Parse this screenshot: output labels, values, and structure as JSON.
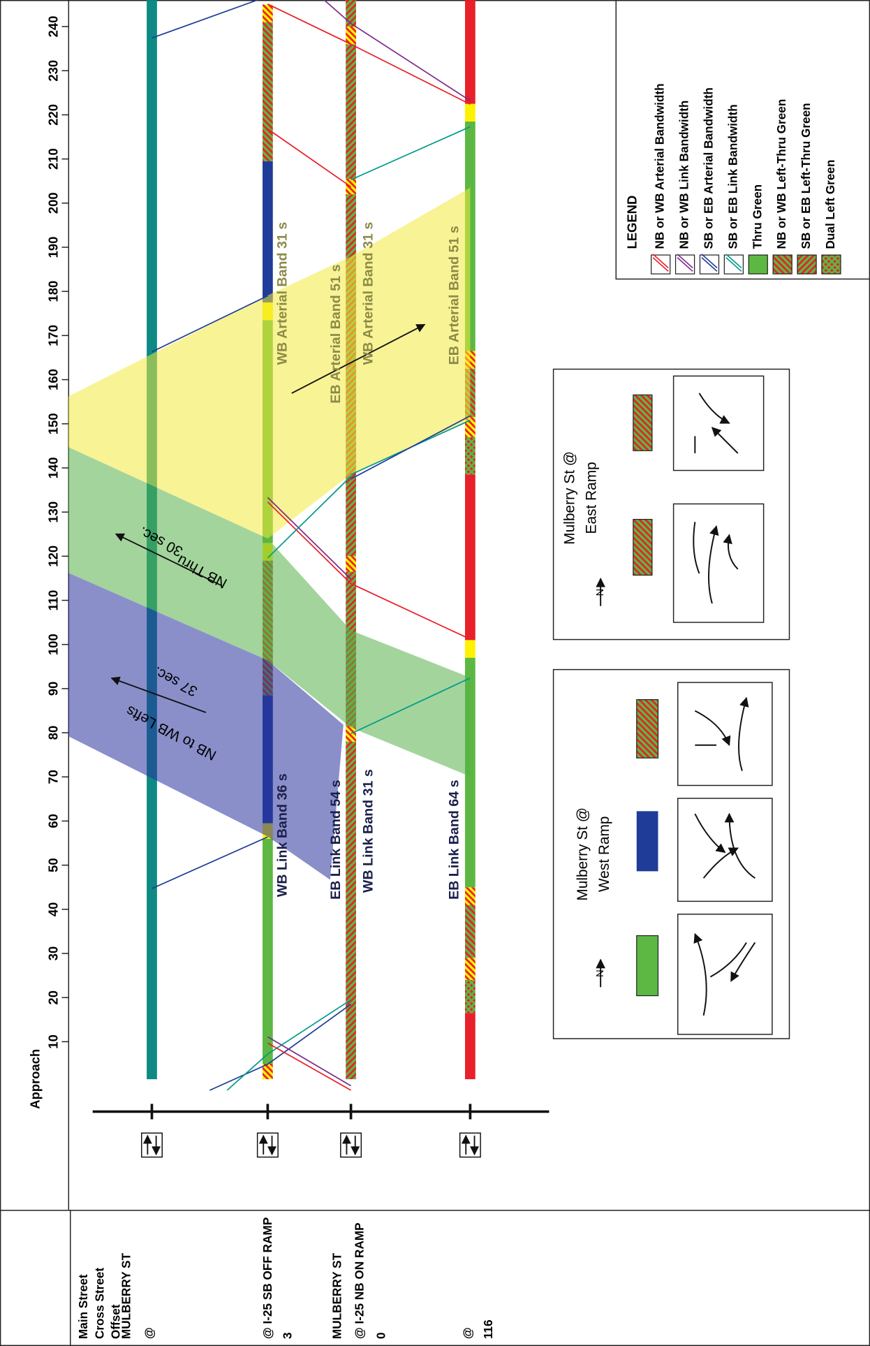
{
  "chart_data": {
    "type": "time-space",
    "header": {
      "main": "Main Street",
      "cross": "Cross Street",
      "offset": "Offset",
      "approach": "Approach"
    },
    "xlim": [
      0,
      246
    ],
    "xticks": [
      10,
      20,
      30,
      40,
      50,
      60,
      70,
      80,
      90,
      100,
      110,
      120,
      130,
      140,
      150,
      160,
      170,
      180,
      190,
      200,
      210,
      220,
      230,
      240
    ],
    "phase_colors": {
      "main": "#0d8a84",
      "thru": "#5cb843",
      "yellow": "#fff200",
      "red": "#e8202a",
      "left": "#1f3c99",
      "hatch": "#e8202a"
    },
    "intersections": [
      {
        "labels": [
          "MULBERRY ST",
          "@"
        ],
        "phases": [
          {
            "start": 1.5,
            "end": 246,
            "kind": "main"
          }
        ]
      },
      {
        "labels": [
          "@ I-25 SB OFF RAMP",
          "3"
        ],
        "phases": [
          {
            "start": 1.5,
            "end": 5,
            "kind": "yellow_lt"
          },
          {
            "start": 5,
            "end": 56,
            "kind": "thru"
          },
          {
            "start": 56,
            "end": 59.5,
            "kind": "yellow"
          },
          {
            "start": 59.5,
            "end": 88.5,
            "kind": "left"
          },
          {
            "start": 88.5,
            "end": 119,
            "kind": "nbwb_lt"
          },
          {
            "start": 119,
            "end": 123,
            "kind": "yellow"
          },
          {
            "start": 123,
            "end": 173.5,
            "kind": "thru"
          },
          {
            "start": 173.5,
            "end": 177.5,
            "kind": "yellow"
          },
          {
            "start": 177.5,
            "end": 209.5,
            "kind": "left"
          },
          {
            "start": 209.5,
            "end": 241,
            "kind": "nbwb_lt"
          },
          {
            "start": 241,
            "end": 245,
            "kind": "yellow_lt"
          }
        ]
      },
      {
        "labels": [
          "MULBERRY ST",
          "@ I-25 NB ON RAMP",
          "0"
        ],
        "phases": [
          {
            "start": 1.5,
            "end": 78,
            "kind": "sbeb_lt"
          },
          {
            "start": 78,
            "end": 81.5,
            "kind": "yellow_lt"
          },
          {
            "start": 81.5,
            "end": 116.5,
            "kind": "sbeb_lt"
          },
          {
            "start": 116.5,
            "end": 120,
            "kind": "yellow_lt"
          },
          {
            "start": 120,
            "end": 202,
            "kind": "sbeb_lt"
          },
          {
            "start": 202,
            "end": 205.5,
            "kind": "yellow_lt"
          },
          {
            "start": 205.5,
            "end": 236,
            "kind": "sbeb_lt"
          },
          {
            "start": 236,
            "end": 240,
            "kind": "yellow_lt"
          },
          {
            "start": 240,
            "end": 246,
            "kind": "sbeb_lt"
          }
        ]
      },
      {
        "labels": [
          "@",
          "116"
        ],
        "phases": [
          {
            "start": 1.5,
            "end": 16.5,
            "kind": "red"
          },
          {
            "start": 16.5,
            "end": 24,
            "kind": "dual"
          },
          {
            "start": 24,
            "end": 29,
            "kind": "yellow_lt"
          },
          {
            "start": 29,
            "end": 41,
            "kind": "nbwb_lt"
          },
          {
            "start": 41,
            "end": 45,
            "kind": "yellow_lt"
          },
          {
            "start": 45,
            "end": 97,
            "kind": "thru"
          },
          {
            "start": 97,
            "end": 101,
            "kind": "yellow"
          },
          {
            "start": 101,
            "end": 138.5,
            "kind": "red"
          },
          {
            "start": 138.5,
            "end": 147,
            "kind": "dual"
          },
          {
            "start": 147,
            "end": 151.5,
            "kind": "yellow_lt"
          },
          {
            "start": 151.5,
            "end": 162.5,
            "kind": "nbwb_lt"
          },
          {
            "start": 162.5,
            "end": 166.5,
            "kind": "yellow_lt"
          },
          {
            "start": 166.5,
            "end": 218.5,
            "kind": "thru"
          },
          {
            "start": 218.5,
            "end": 222.5,
            "kind": "yellow"
          },
          {
            "start": 222.5,
            "end": 246,
            "kind": "red"
          }
        ]
      }
    ],
    "bands": [
      {
        "color": "#f3e93c",
        "points": [
          [
            156.2,
            -0.72
          ],
          [
            179.1,
            1
          ],
          [
            187.9,
            2
          ],
          [
            203.5,
            3
          ],
          [
            150.9,
            3
          ],
          [
            138.6,
            2
          ],
          [
            124.0,
            1
          ],
          [
            144.7,
            -0.72
          ]
        ]
      },
      {
        "color": "#58b04a",
        "label": "NB Thru",
        "duration": "30 sec.",
        "points": [
          [
            144.7,
            -0.72
          ],
          [
            124.0,
            1
          ],
          [
            103.2,
            2
          ],
          [
            92.5,
            3
          ],
          [
            70.1,
            3
          ],
          [
            81.2,
            2
          ],
          [
            96.4,
            1
          ],
          [
            116.2,
            -0.72
          ]
        ]
      },
      {
        "color": "#2a339e",
        "label": "NB to WB Lefts",
        "duration": "37 sec.",
        "points": [
          [
            116.2,
            -0.72
          ],
          [
            96.4,
            1
          ],
          [
            81.8,
            1.91
          ],
          [
            46.7,
            1.75
          ],
          [
            56.5,
            1
          ],
          [
            79.2,
            -0.72
          ]
        ]
      }
    ],
    "lines": [
      {
        "color": "#1f3c99",
        "points": [
          [
            237.4,
            0
          ],
          [
            246,
            0.91
          ]
        ]
      },
      {
        "color": "#e8202a",
        "points": [
          [
            245.1,
            1
          ],
          [
            236.0,
            2
          ],
          [
            222.4,
            3
          ]
        ]
      },
      {
        "color": "#7b2a8c",
        "points": [
          [
            246,
            1.68
          ],
          [
            240.7,
            2
          ],
          [
            223.2,
            3
          ]
        ]
      },
      {
        "color": "#e8202a",
        "points": [
          [
            216.8,
            1
          ],
          [
            203.7,
            2
          ]
        ]
      },
      {
        "color": "#009a8a",
        "points": [
          [
            205.3,
            2
          ],
          [
            217.3,
            3
          ]
        ]
      },
      {
        "color": "#1f3c99",
        "points": [
          [
            166.3,
            0
          ],
          [
            179.0,
            1
          ]
        ]
      },
      {
        "color": "#e8202a",
        "points": [
          [
            132.3,
            1
          ],
          [
            113.8,
            2
          ],
          [
            101.2,
            3
          ]
        ]
      },
      {
        "color": "#7b2a8c",
        "points": [
          [
            133.3,
            1
          ],
          [
            114.8,
            2
          ]
        ]
      },
      {
        "color": "#009a8a",
        "points": [
          [
            138.5,
            2
          ],
          [
            150.8,
            3
          ]
        ]
      },
      {
        "color": "#1f3c99",
        "points": [
          [
            137.5,
            2
          ],
          [
            151.8,
            3
          ]
        ]
      },
      {
        "color": "#009a8a",
        "points": [
          [
            119.6,
            1
          ],
          [
            138.1,
            2
          ]
        ]
      },
      {
        "color": "#009a8a",
        "points": [
          [
            79.8,
            2
          ],
          [
            92.4,
            3
          ]
        ]
      },
      {
        "color": "#1f3c99",
        "points": [
          [
            56.4,
            1
          ],
          [
            44.7,
            0
          ]
        ]
      },
      {
        "color": "#1f3c99",
        "points": [
          [
            -1,
            0.5
          ],
          [
            4.9,
            1
          ],
          [
            18.5,
            2
          ]
        ]
      },
      {
        "color": "#009a8a",
        "points": [
          [
            -1,
            0.65
          ],
          [
            7.2,
            1
          ],
          [
            19.5,
            2
          ]
        ]
      },
      {
        "color": "#e8202a",
        "points": [
          [
            9.7,
            1
          ],
          [
            -1,
            2
          ]
        ]
      },
      {
        "color": "#7b2a8c",
        "points": [
          [
            11.1,
            1
          ],
          [
            0,
            2
          ]
        ]
      }
    ],
    "annotations": [
      "WB Link Band 36 s",
      "WB Arterial Band 31 s",
      "EB Link Band 54 s",
      "EB Arterial Band 51 s",
      "WB Link Band 31 s",
      "WB Arterial Band 31 s",
      "EB Link Band 64 s",
      "EB Arterial Band 51 s"
    ],
    "legend": {
      "title": "LEGEND",
      "items": [
        {
          "name": "NB or WB Arterial Bandwidth",
          "kind": "line",
          "color": "#e8202a"
        },
        {
          "name": "NB or WB Link Bandwidth",
          "kind": "line",
          "color": "#7b2a8c"
        },
        {
          "name": "SB or EB Arterial Bandwidth",
          "kind": "line",
          "color": "#1f3c99"
        },
        {
          "name": "SB or EB Link Bandwidth",
          "kind": "line",
          "color": "#009a8a"
        },
        {
          "name": "Thru Green",
          "kind": "thru"
        },
        {
          "name": "NB or WB Left-Thru Green",
          "kind": "nbwb_lt"
        },
        {
          "name": "SB or EB Left-Thru Green",
          "kind": "sbeb_lt"
        },
        {
          "name": "Dual Left Green",
          "kind": "dual"
        }
      ]
    },
    "insets": [
      {
        "title": [
          "Mulberry St @",
          "West Ramp"
        ],
        "north": "N"
      },
      {
        "title": [
          "Mulberry St @",
          "East Ramp"
        ],
        "north": "N"
      }
    ]
  }
}
